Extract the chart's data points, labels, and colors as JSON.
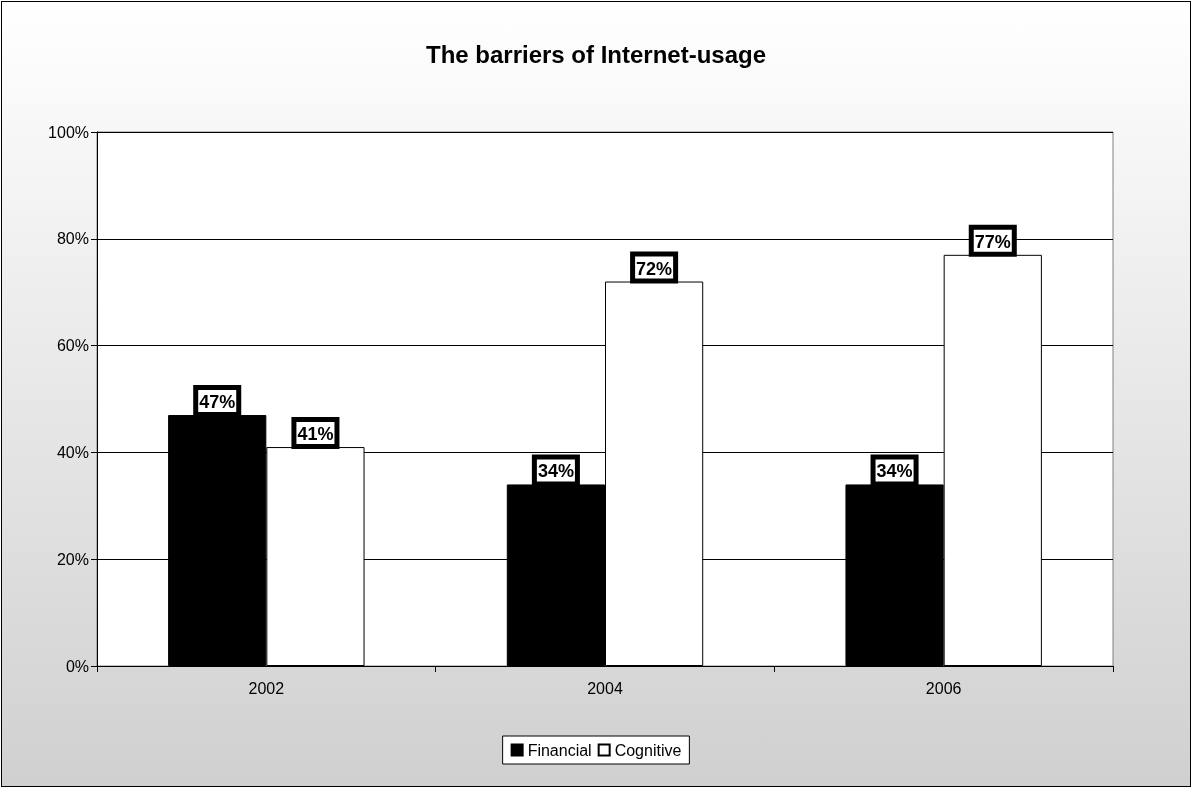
{
  "chart_data": {
    "type": "bar",
    "title": "The barriers of Internet-usage",
    "categories": [
      "2002",
      "2004",
      "2006"
    ],
    "series": [
      {
        "name": "Financial",
        "color": "#000000",
        "values": [
          47,
          34,
          34
        ],
        "value_labels": [
          "47%",
          "34%",
          "34%"
        ]
      },
      {
        "name": "Cognitive",
        "color": "#ffffff",
        "values": [
          41,
          72,
          77
        ],
        "value_labels": [
          "41%",
          "72%",
          "77%"
        ]
      }
    ],
    "ylim": [
      0,
      100
    ],
    "yticks": [
      {
        "value": 0,
        "label": "0%"
      },
      {
        "value": 20,
        "label": "20%"
      },
      {
        "value": 40,
        "label": "40%"
      },
      {
        "value": 60,
        "label": "60%"
      },
      {
        "value": 80,
        "label": "80%"
      },
      {
        "value": 100,
        "label": "100%"
      }
    ],
    "grid": "y",
    "legend": "bottom"
  }
}
